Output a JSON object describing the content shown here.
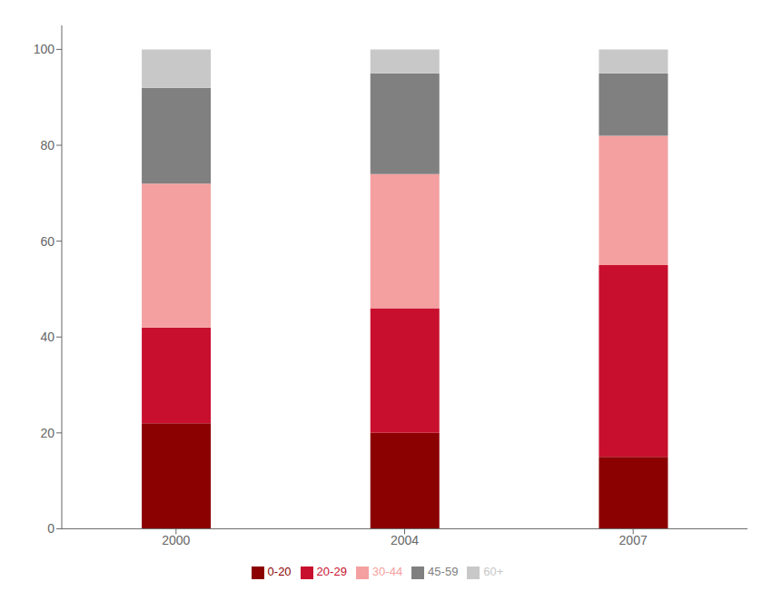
{
  "chart_data": {
    "type": "bar",
    "stacked": true,
    "categories": [
      "2000",
      "2004",
      "2007"
    ],
    "series": [
      {
        "name": "0-20",
        "color": "#8B0000",
        "values": [
          22,
          20,
          15
        ]
      },
      {
        "name": "20-29",
        "color": "#C8102E",
        "values": [
          20,
          26,
          40
        ]
      },
      {
        "name": "30-44",
        "color": "#F4A0A0",
        "values": [
          30,
          28,
          27
        ]
      },
      {
        "name": "45-59",
        "color": "#808080",
        "values": [
          20,
          21,
          13
        ]
      },
      {
        "name": "60+",
        "color": "#C8C8C8",
        "values": [
          8,
          5,
          5
        ]
      }
    ],
    "ylim": [
      0,
      105
    ],
    "yticks": [
      0,
      20,
      40,
      60,
      80,
      100
    ],
    "grid": false,
    "legend": "bottom"
  }
}
